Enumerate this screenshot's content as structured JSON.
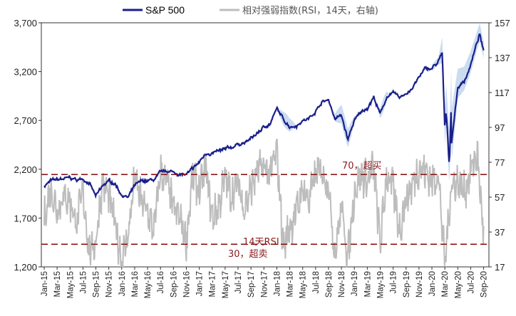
{
  "chart_data": {
    "type": "line",
    "legend": [
      {
        "name": "S&P 500",
        "color": "#1a1f8c"
      },
      {
        "name": "相对强弱指数(RSI，14天，右轴)",
        "color": "#b8b8b8"
      }
    ],
    "band_color": "#c5d8f0",
    "y_left": {
      "min": 1200,
      "max": 3700,
      "ticks": [
        "3,700",
        "3,200",
        "2,700",
        "2,200",
        "1,700",
        "1,200"
      ],
      "tick_values": [
        3700,
        3200,
        2700,
        2200,
        1700,
        1200
      ]
    },
    "y_right": {
      "min": 17,
      "max": 157,
      "ticks": [
        "157",
        "137",
        "117",
        "97",
        "77",
        "57",
        "37",
        "17"
      ],
      "tick_values": [
        157,
        137,
        117,
        97,
        77,
        57,
        37,
        17
      ]
    },
    "x_ticks": [
      "Jan-15",
      "Mar-15",
      "May-15",
      "Jul-15",
      "Sep-15",
      "Nov-15",
      "Jan-16",
      "Mar-16",
      "May-16",
      "Jul-16",
      "Sep-16",
      "Nov-16",
      "Jan-17",
      "Mar-17",
      "May-17",
      "Jul-17",
      "Sep-17",
      "Nov-17",
      "Jan-18",
      "Mar-18",
      "May-18",
      "Jul-18",
      "Sep-18",
      "Nov-18",
      "Jan-19",
      "Mar-19",
      "May-19",
      "Jul-19",
      "Sep-19",
      "Nov-19",
      "Jan-20",
      "Mar-20",
      "May-20",
      "Jul-20",
      "Sep-20"
    ],
    "sp500_months": [
      {
        "m": 0,
        "v": 2030
      },
      {
        "m": 1,
        "v": 2080
      },
      {
        "m": 2,
        "v": 2090
      },
      {
        "m": 3,
        "v": 2100
      },
      {
        "m": 4,
        "v": 2110
      },
      {
        "m": 5,
        "v": 2090
      },
      {
        "m": 6,
        "v": 2100
      },
      {
        "m": 7,
        "v": 2060
      },
      {
        "m": 8,
        "v": 1920
      },
      {
        "m": 9,
        "v": 2020
      },
      {
        "m": 10,
        "v": 2080
      },
      {
        "m": 11,
        "v": 2050
      },
      {
        "m": 12,
        "v": 1940
      },
      {
        "m": 13,
        "v": 1910
      },
      {
        "m": 14,
        "v": 2030
      },
      {
        "m": 15,
        "v": 2070
      },
      {
        "m": 16,
        "v": 2080
      },
      {
        "m": 17,
        "v": 2090
      },
      {
        "m": 18,
        "v": 2160
      },
      {
        "m": 19,
        "v": 2180
      },
      {
        "m": 20,
        "v": 2170
      },
      {
        "m": 21,
        "v": 2150
      },
      {
        "m": 22,
        "v": 2140
      },
      {
        "m": 23,
        "v": 2200
      },
      {
        "m": 24,
        "v": 2270
      },
      {
        "m": 25,
        "v": 2360
      },
      {
        "m": 26,
        "v": 2370
      },
      {
        "m": 27,
        "v": 2380
      },
      {
        "m": 28,
        "v": 2400
      },
      {
        "m": 29,
        "v": 2420
      },
      {
        "m": 30,
        "v": 2460
      },
      {
        "m": 31,
        "v": 2470
      },
      {
        "m": 32,
        "v": 2510
      },
      {
        "m": 33,
        "v": 2570
      },
      {
        "m": 34,
        "v": 2630
      },
      {
        "m": 35,
        "v": 2670
      },
      {
        "m": 36,
        "v": 2820
      },
      {
        "m": 37,
        "v": 2710
      },
      {
        "m": 38,
        "v": 2640
      },
      {
        "m": 39,
        "v": 2650
      },
      {
        "m": 40,
        "v": 2700
      },
      {
        "m": 41,
        "v": 2720
      },
      {
        "m": 42,
        "v": 2800
      },
      {
        "m": 43,
        "v": 2890
      },
      {
        "m": 44,
        "v": 2910
      },
      {
        "m": 45,
        "v": 2720
      },
      {
        "m": 46,
        "v": 2750
      },
      {
        "m": 47,
        "v": 2500
      },
      {
        "m": 48,
        "v": 2700
      },
      {
        "m": 49,
        "v": 2780
      },
      {
        "m": 50,
        "v": 2830
      },
      {
        "m": 51,
        "v": 2940
      },
      {
        "m": 52,
        "v": 2760
      },
      {
        "m": 53,
        "v": 2940
      },
      {
        "m": 54,
        "v": 2980
      },
      {
        "m": 55,
        "v": 2930
      },
      {
        "m": 56,
        "v": 2980
      },
      {
        "m": 57,
        "v": 3030
      },
      {
        "m": 58,
        "v": 3140
      },
      {
        "m": 59,
        "v": 3230
      },
      {
        "m": 60,
        "v": 3230
      },
      {
        "m": 61,
        "v": 3300
      },
      {
        "m": 62,
        "v": 2590
      },
      {
        "m": 63,
        "v": 2910
      },
      {
        "m": 64,
        "v": 3040
      },
      {
        "m": 65,
        "v": 3100
      },
      {
        "m": 66,
        "v": 3270
      },
      {
        "m": 67,
        "v": 3500
      },
      {
        "m": 68,
        "v": 3400
      }
    ],
    "sp500_details": [
      {
        "m": 61.6,
        "v": 3386
      },
      {
        "m": 62.2,
        "v": 2800
      },
      {
        "m": 62.7,
        "v": 2240
      },
      {
        "m": 63.0,
        "v": 2450
      },
      {
        "m": 67.4,
        "v": 3580
      }
    ],
    "rsi_months": [
      {
        "m": 0,
        "v": 45
      },
      {
        "m": 1,
        "v": 62
      },
      {
        "m": 2,
        "v": 50
      },
      {
        "m": 3,
        "v": 58
      },
      {
        "m": 4,
        "v": 55
      },
      {
        "m": 5,
        "v": 42
      },
      {
        "m": 6,
        "v": 60
      },
      {
        "m": 7,
        "v": 25
      },
      {
        "m": 8,
        "v": 32
      },
      {
        "m": 9,
        "v": 65
      },
      {
        "m": 10,
        "v": 58
      },
      {
        "m": 11,
        "v": 40
      },
      {
        "m": 12,
        "v": 22
      },
      {
        "m": 13,
        "v": 35
      },
      {
        "m": 14,
        "v": 68
      },
      {
        "m": 15,
        "v": 55
      },
      {
        "m": 16,
        "v": 48
      },
      {
        "m": 17,
        "v": 38
      },
      {
        "m": 18,
        "v": 72
      },
      {
        "m": 19,
        "v": 66
      },
      {
        "m": 20,
        "v": 50
      },
      {
        "m": 21,
        "v": 45
      },
      {
        "m": 22,
        "v": 32
      },
      {
        "m": 23,
        "v": 70
      },
      {
        "m": 24,
        "v": 60
      },
      {
        "m": 25,
        "v": 74
      },
      {
        "m": 26,
        "v": 45
      },
      {
        "m": 27,
        "v": 52
      },
      {
        "m": 28,
        "v": 68
      },
      {
        "m": 29,
        "v": 58
      },
      {
        "m": 30,
        "v": 65
      },
      {
        "m": 31,
        "v": 50
      },
      {
        "m": 32,
        "v": 62
      },
      {
        "m": 33,
        "v": 72
      },
      {
        "m": 34,
        "v": 74
      },
      {
        "m": 35,
        "v": 70
      },
      {
        "m": 36,
        "v": 84
      },
      {
        "m": 37,
        "v": 28
      },
      {
        "m": 38,
        "v": 40
      },
      {
        "m": 39,
        "v": 48
      },
      {
        "m": 40,
        "v": 62
      },
      {
        "m": 41,
        "v": 55
      },
      {
        "m": 42,
        "v": 70
      },
      {
        "m": 43,
        "v": 72
      },
      {
        "m": 44,
        "v": 64
      },
      {
        "m": 45,
        "v": 24
      },
      {
        "m": 46,
        "v": 52
      },
      {
        "m": 47,
        "v": 22
      },
      {
        "m": 48,
        "v": 60
      },
      {
        "m": 49,
        "v": 70
      },
      {
        "m": 50,
        "v": 66
      },
      {
        "m": 51,
        "v": 74
      },
      {
        "m": 52,
        "v": 30
      },
      {
        "m": 53,
        "v": 70
      },
      {
        "m": 54,
        "v": 62
      },
      {
        "m": 55,
        "v": 38
      },
      {
        "m": 56,
        "v": 56
      },
      {
        "m": 57,
        "v": 64
      },
      {
        "m": 58,
        "v": 74
      },
      {
        "m": 59,
        "v": 72
      },
      {
        "m": 60,
        "v": 66
      },
      {
        "m": 61,
        "v": 70
      },
      {
        "m": 62,
        "v": 18
      },
      {
        "m": 63,
        "v": 64
      },
      {
        "m": 64,
        "v": 66
      },
      {
        "m": 65,
        "v": 60
      },
      {
        "m": 66,
        "v": 72
      },
      {
        "m": 67,
        "v": 82
      },
      {
        "m": 68,
        "v": 36
      }
    ],
    "band_halfwidth": [
      {
        "m": 60,
        "w": 40
      },
      {
        "m": 61,
        "w": 50
      },
      {
        "m": 61.8,
        "w": 200
      },
      {
        "m": 62.5,
        "w": 330
      },
      {
        "m": 63.2,
        "w": 320
      },
      {
        "m": 64,
        "w": 190
      },
      {
        "m": 65,
        "w": 150
      },
      {
        "m": 66,
        "w": 140
      },
      {
        "m": 67,
        "w": 120
      },
      {
        "m": 68,
        "w": 110
      }
    ],
    "reference_lines": [
      {
        "value": 70,
        "axis": "right",
        "label": "70，超买",
        "color": "#8b1a1a"
      },
      {
        "value": 30,
        "axis": "right",
        "label": "30，超卖",
        "color": "#8b1a1a"
      }
    ],
    "annotations": [
      {
        "text": "14天RSI"
      }
    ]
  }
}
